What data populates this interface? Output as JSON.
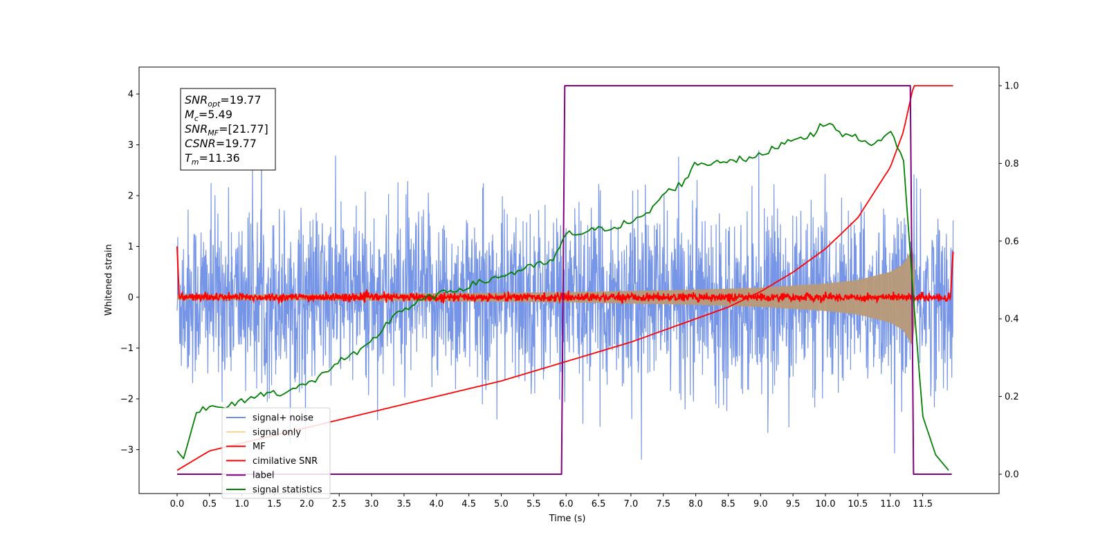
{
  "chart_data": {
    "type": "line",
    "xlabel": "Time (s)",
    "ylabel": "Whitened strain",
    "xlim": [
      -0.6,
      12.6
    ],
    "ylim_left": [
      -3.85,
      4.5
    ],
    "ylim_right": [
      -0.05,
      1.05
    ],
    "x_ticks": [
      "0.0",
      "0.5",
      "1.0",
      "1.5",
      "2.0",
      "2.5",
      "3.0",
      "3.5",
      "4.0",
      "4.5",
      "5.0",
      "5.5",
      "6.0",
      "6.5",
      "7.0",
      "7.5",
      "8.0",
      "8.5",
      "9.0",
      "9.5",
      "10.0",
      "10.5",
      "11.0",
      "11.5"
    ],
    "y_left_ticks": [
      "4",
      "3",
      "2",
      "1",
      "0",
      "−1",
      "−2",
      "−3"
    ],
    "y_right_ticks": [
      "1.0",
      "0.8",
      "0.6",
      "0.4",
      "0.2",
      "0.0"
    ],
    "grid": false,
    "legend_position": "lower-left",
    "annotation": {
      "lines": [
        {
          "sym": "SNR",
          "sub": "opt",
          "rest": "=19.77"
        },
        {
          "sym": "M",
          "sub": "c",
          "rest": "=5.49"
        },
        {
          "sym": "SNR",
          "sub": "MF",
          "rest": "=[21.77]"
        },
        {
          "sym": "CSNR",
          "sub": "",
          "rest": "=19.77"
        },
        {
          "sym": "T",
          "sub": "m",
          "rest": "=11.36"
        }
      ]
    },
    "series": [
      {
        "name": "signal+ noise",
        "color": "#6f8fe6",
        "axis": "left",
        "description": "whitened noisy strain, amplitude about ±2.5 with spikes to 4.2"
      },
      {
        "name": "signal only",
        "color": "#f5c87a",
        "axis": "left",
        "envelope": {
          "t": [
            0,
            2,
            4,
            6,
            8,
            9,
            10,
            10.5,
            11,
            11.2,
            11.36,
            11.4
          ],
          "amp": [
            0.05,
            0.06,
            0.08,
            0.1,
            0.15,
            0.19,
            0.27,
            0.34,
            0.5,
            0.65,
            1.0,
            0.0
          ]
        }
      },
      {
        "name": "MF",
        "color": "#ff0000",
        "axis": "left",
        "description": "matched-filter output near 0 with edge spikes to 1.0 and 0.9"
      },
      {
        "name": "cimilative SNR",
        "color": "#ff0000",
        "axis": "right",
        "t": [
          0,
          0.5,
          1,
          2,
          3,
          4,
          5,
          6,
          7,
          8,
          8.5,
          9,
          9.5,
          10,
          10.5,
          11,
          11.2,
          11.36,
          12.0
        ],
        "y": [
          0.01,
          0.06,
          0.08,
          0.12,
          0.16,
          0.2,
          0.24,
          0.29,
          0.34,
          0.4,
          0.43,
          0.47,
          0.52,
          0.58,
          0.66,
          0.79,
          0.88,
          1.0,
          1.0
        ]
      },
      {
        "name": "label",
        "color": "#800080",
        "axis": "right",
        "t": [
          0.0,
          5.93,
          5.98,
          11.31,
          11.36,
          11.95
        ],
        "y": [
          0.0,
          0.0,
          1.0,
          1.0,
          0.0,
          0.0
        ]
      },
      {
        "name": "signal statistics",
        "color": "#008000",
        "axis": "right",
        "t": [
          0,
          0.1,
          0.2,
          0.3,
          0.4,
          0.5,
          0.7,
          0.9,
          1.0,
          1.2,
          1.4,
          1.6,
          1.8,
          2.0,
          2.2,
          2.4,
          2.6,
          2.8,
          3.0,
          3.2,
          3.4,
          3.6,
          3.8,
          4.0,
          4.2,
          4.4,
          4.6,
          4.8,
          5.0,
          5.2,
          5.4,
          5.6,
          5.8,
          5.95,
          6.05,
          6.2,
          6.5,
          6.8,
          7.0,
          7.2,
          7.5,
          7.8,
          8.0,
          8.2,
          8.5,
          8.8,
          9.0,
          9.3,
          9.6,
          9.8,
          10.0,
          10.2,
          10.4,
          10.6,
          10.8,
          11.0,
          11.2,
          11.36,
          11.5,
          11.7,
          11.9
        ],
        "y": [
          0.06,
          0.04,
          0.1,
          0.16,
          0.17,
          0.17,
          0.17,
          0.18,
          0.19,
          0.2,
          0.21,
          0.21,
          0.22,
          0.23,
          0.25,
          0.28,
          0.3,
          0.31,
          0.34,
          0.38,
          0.42,
          0.43,
          0.45,
          0.46,
          0.47,
          0.48,
          0.49,
          0.5,
          0.51,
          0.52,
          0.53,
          0.54,
          0.55,
          0.6,
          0.62,
          0.62,
          0.63,
          0.64,
          0.65,
          0.66,
          0.72,
          0.75,
          0.8,
          0.8,
          0.81,
          0.81,
          0.82,
          0.85,
          0.87,
          0.87,
          0.91,
          0.88,
          0.87,
          0.86,
          0.85,
          0.88,
          0.82,
          0.45,
          0.15,
          0.05,
          0.01
        ]
      }
    ]
  }
}
